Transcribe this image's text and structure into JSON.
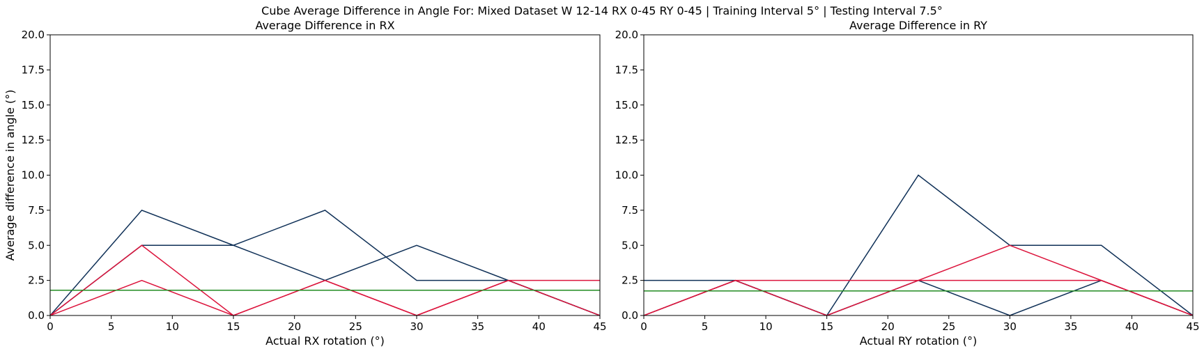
{
  "figure": {
    "suptitle": "Cube Average Difference in Angle For: Mixed Dataset W 12-14 RX 0-45 RY 0-45 | Training Interval 5° | Testing Interval 7.5°"
  },
  "chart_data": [
    {
      "type": "line",
      "title": "Average Difference in RX",
      "xlabel": "Actual RX rotation (°)",
      "ylabel": "Average difference in angle (°)",
      "xlim": [
        0,
        45
      ],
      "ylim": [
        0,
        20
      ],
      "xticks": [
        0,
        5,
        10,
        15,
        20,
        25,
        30,
        35,
        40,
        45
      ],
      "yticks": [
        0.0,
        2.5,
        5.0,
        7.5,
        10.0,
        12.5,
        15.0,
        17.5,
        20.0
      ],
      "grid": false,
      "colors": {
        "navy": "#0f3057",
        "crimson": "#dc143c",
        "green": "#228b22"
      },
      "series": [
        {
          "color": "#0f3057",
          "x": [
            0,
            7.5,
            15,
            22.5,
            30,
            37.5,
            45
          ],
          "y": [
            0,
            7.5,
            5.0,
            2.5,
            5.0,
            2.5,
            0
          ]
        },
        {
          "color": "#0f3057",
          "x": [
            0,
            7.5,
            15,
            22.5,
            30,
            37.5,
            45
          ],
          "y": [
            0,
            5.0,
            5.0,
            7.5,
            2.5,
            2.5,
            0
          ]
        },
        {
          "color": "#dc143c",
          "x": [
            0,
            7.5,
            15,
            22.5,
            30,
            37.5,
            45
          ],
          "y": [
            0,
            5.0,
            0,
            2.5,
            0,
            2.5,
            2.5
          ]
        },
        {
          "color": "#dc143c",
          "x": [
            0,
            7.5,
            15,
            22.5,
            30,
            37.5,
            45
          ],
          "y": [
            0,
            2.5,
            0,
            2.5,
            0,
            2.5,
            0
          ]
        },
        {
          "color": "#228b22",
          "x": [
            0,
            45
          ],
          "y": [
            1.8,
            1.8
          ]
        }
      ]
    },
    {
      "type": "line",
      "title": "Average Difference in RY",
      "xlabel": "Actual RY rotation (°)",
      "ylabel": "",
      "xlim": [
        0,
        45
      ],
      "ylim": [
        0,
        20
      ],
      "xticks": [
        0,
        5,
        10,
        15,
        20,
        25,
        30,
        35,
        40,
        45
      ],
      "yticks": [
        0.0,
        2.5,
        5.0,
        7.5,
        10.0,
        12.5,
        15.0,
        17.5,
        20.0
      ],
      "grid": false,
      "colors": {
        "navy": "#0f3057",
        "crimson": "#dc143c",
        "green": "#228b22"
      },
      "series": [
        {
          "color": "#0f3057",
          "x": [
            0,
            7.5,
            15,
            22.5,
            30,
            37.5,
            45
          ],
          "y": [
            2.5,
            2.5,
            0,
            10.0,
            5.0,
            5.0,
            0
          ]
        },
        {
          "color": "#0f3057",
          "x": [
            0,
            7.5,
            15,
            22.5,
            30,
            37.5,
            45
          ],
          "y": [
            0,
            2.5,
            0,
            2.5,
            0,
            2.5,
            0
          ]
        },
        {
          "color": "#dc143c",
          "x": [
            0,
            7.5,
            15,
            22.5,
            30,
            37.5,
            45
          ],
          "y": [
            0,
            2.5,
            2.5,
            2.5,
            5.0,
            2.5,
            0
          ]
        },
        {
          "color": "#dc143c",
          "x": [
            0,
            7.5,
            15,
            22.5,
            30,
            37.5,
            45
          ],
          "y": [
            0,
            2.5,
            0,
            2.5,
            2.5,
            2.5,
            0
          ]
        },
        {
          "color": "#228b22",
          "x": [
            0,
            45
          ],
          "y": [
            1.75,
            1.75
          ]
        }
      ]
    }
  ]
}
